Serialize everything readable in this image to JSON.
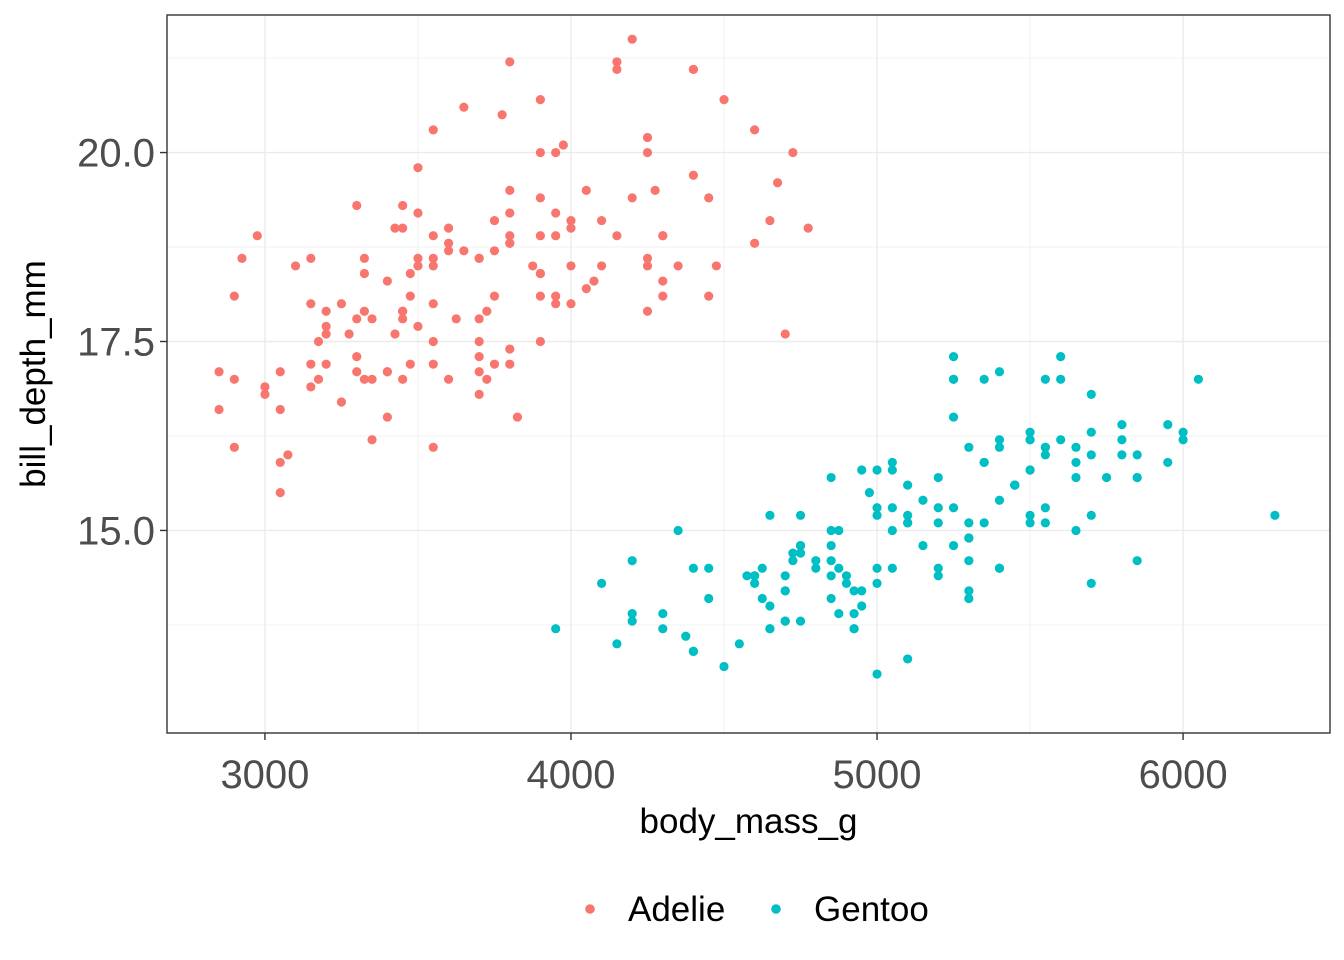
{
  "chart_data": {
    "type": "scatter",
    "xlabel": "body_mass_g",
    "ylabel": "bill_depth_mm",
    "xlim": [
      2680,
      6480
    ],
    "ylim": [
      12.32,
      21.82
    ],
    "x_ticks": [
      3000,
      4000,
      5000,
      6000
    ],
    "y_ticks": [
      15.0,
      17.5,
      20.0
    ],
    "x_tick_labels": [
      "3000",
      "4000",
      "5000",
      "6000"
    ],
    "y_tick_labels": [
      "15.0",
      "17.5",
      "20.0"
    ],
    "grid": true,
    "legend_position": "bottom",
    "series": [
      {
        "name": "Adelie",
        "color": "#F8766D",
        "points": [
          [
            3750,
            18.7
          ],
          [
            3800,
            17.4
          ],
          [
            3250,
            18.0
          ],
          [
            3450,
            19.3
          ],
          [
            3650,
            20.6
          ],
          [
            3625,
            17.8
          ],
          [
            4675,
            19.6
          ],
          [
            3475,
            18.1
          ],
          [
            4250,
            20.2
          ],
          [
            3300,
            17.1
          ],
          [
            3700,
            17.3
          ],
          [
            3200,
            17.6
          ],
          [
            3800,
            21.2
          ],
          [
            4400,
            21.1
          ],
          [
            3700,
            17.8
          ],
          [
            3450,
            19.0
          ],
          [
            4500,
            20.7
          ],
          [
            3325,
            18.4
          ],
          [
            4200,
            21.5
          ],
          [
            3400,
            18.3
          ],
          [
            3600,
            18.7
          ],
          [
            3800,
            19.2
          ],
          [
            3950,
            18.1
          ],
          [
            3800,
            17.2
          ],
          [
            3800,
            18.9
          ],
          [
            3550,
            18.6
          ],
          [
            3200,
            17.9
          ],
          [
            3150,
            18.6
          ],
          [
            3950,
            18.9
          ],
          [
            3250,
            16.7
          ],
          [
            3900,
            18.1
          ],
          [
            3300,
            17.8
          ],
          [
            3900,
            18.9
          ],
          [
            3325,
            17.0
          ],
          [
            4150,
            21.1
          ],
          [
            3950,
            20.0
          ],
          [
            3550,
            18.5
          ],
          [
            3300,
            19.3
          ],
          [
            4650,
            19.1
          ],
          [
            3150,
            18.0
          ],
          [
            3900,
            18.4
          ],
          [
            3100,
            18.5
          ],
          [
            4400,
            19.7
          ],
          [
            3000,
            16.9
          ],
          [
            4600,
            18.8
          ],
          [
            3425,
            19.0
          ],
          [
            2975,
            18.9
          ],
          [
            3450,
            17.9
          ],
          [
            4150,
            21.2
          ],
          [
            3500,
            17.7
          ],
          [
            4300,
            18.9
          ],
          [
            3450,
            17.9
          ],
          [
            4050,
            19.5
          ],
          [
            2900,
            18.1
          ],
          [
            3700,
            18.6
          ],
          [
            3550,
            17.5
          ],
          [
            3800,
            18.8
          ],
          [
            2850,
            16.6
          ],
          [
            3750,
            19.1
          ],
          [
            3150,
            16.9
          ],
          [
            4400,
            21.1
          ],
          [
            3600,
            17.0
          ],
          [
            4050,
            18.2
          ],
          [
            2850,
            17.1
          ],
          [
            3950,
            18.0
          ],
          [
            3350,
            16.2
          ],
          [
            4100,
            19.1
          ],
          [
            3050,
            16.6
          ],
          [
            4450,
            19.4
          ],
          [
            3600,
            19.0
          ],
          [
            3900,
            18.4
          ],
          [
            3550,
            17.2
          ],
          [
            4150,
            18.9
          ],
          [
            3700,
            17.5
          ],
          [
            4250,
            18.5
          ],
          [
            3700,
            16.8
          ],
          [
            3900,
            19.4
          ],
          [
            3550,
            16.1
          ],
          [
            4000,
            19.1
          ],
          [
            3200,
            17.2
          ],
          [
            4700,
            17.6
          ],
          [
            3800,
            18.8
          ],
          [
            4200,
            19.4
          ],
          [
            3350,
            17.8
          ],
          [
            3550,
            20.3
          ],
          [
            3800,
            19.5
          ],
          [
            3500,
            18.6
          ],
          [
            3950,
            19.2
          ],
          [
            3600,
            18.8
          ],
          [
            3550,
            18.0
          ],
          [
            4300,
            18.1
          ],
          [
            3400,
            17.1
          ],
          [
            4450,
            18.1
          ],
          [
            3300,
            17.3
          ],
          [
            4300,
            18.9
          ],
          [
            3700,
            18.6
          ],
          [
            4350,
            18.5
          ],
          [
            2900,
            16.1
          ],
          [
            4100,
            18.5
          ],
          [
            3725,
            17.9
          ],
          [
            4725,
            20.0
          ],
          [
            3075,
            16.0
          ],
          [
            4250,
            20.0
          ],
          [
            2925,
            18.6
          ],
          [
            3550,
            18.9
          ],
          [
            3750,
            17.2
          ],
          [
            3900,
            20.0
          ],
          [
            3175,
            17.0
          ],
          [
            4775,
            19.0
          ],
          [
            3825,
            16.5
          ],
          [
            4600,
            20.3
          ],
          [
            3200,
            17.7
          ],
          [
            4275,
            19.5
          ],
          [
            3900,
            20.7
          ],
          [
            4075,
            18.3
          ],
          [
            2900,
            17.0
          ],
          [
            3775,
            20.5
          ],
          [
            3350,
            17.0
          ],
          [
            3325,
            18.6
          ],
          [
            3150,
            17.2
          ],
          [
            3500,
            19.8
          ],
          [
            3450,
            17.0
          ],
          [
            3875,
            18.5
          ],
          [
            3050,
            15.9
          ],
          [
            4000,
            19.0
          ],
          [
            3275,
            17.6
          ],
          [
            4300,
            18.3
          ],
          [
            3050,
            17.1
          ],
          [
            4000,
            18.0
          ],
          [
            3325,
            17.9
          ],
          [
            3500,
            19.2
          ],
          [
            3500,
            18.5
          ],
          [
            4475,
            18.5
          ],
          [
            3425,
            17.6
          ],
          [
            3900,
            17.5
          ],
          [
            3175,
            17.5
          ],
          [
            3975,
            20.1
          ],
          [
            3400,
            16.5
          ],
          [
            4250,
            17.9
          ],
          [
            3400,
            17.1
          ],
          [
            3475,
            17.2
          ],
          [
            3050,
            15.5
          ],
          [
            3725,
            17.0
          ],
          [
            3000,
            16.8
          ],
          [
            3650,
            18.7
          ],
          [
            4250,
            18.6
          ],
          [
            3475,
            18.4
          ],
          [
            3450,
            17.8
          ],
          [
            3750,
            18.1
          ],
          [
            3700,
            17.1
          ],
          [
            4000,
            18.5
          ]
        ]
      },
      {
        "name": "Gentoo",
        "color": "#00BFC4",
        "points": [
          [
            4500,
            13.2
          ],
          [
            5700,
            16.3
          ],
          [
            4450,
            14.1
          ],
          [
            5700,
            15.2
          ],
          [
            5400,
            14.5
          ],
          [
            4550,
            13.5
          ],
          [
            4800,
            14.6
          ],
          [
            5200,
            15.3
          ],
          [
            4400,
            13.4
          ],
          [
            5150,
            15.4
          ],
          [
            4650,
            13.7
          ],
          [
            5550,
            16.1
          ],
          [
            4650,
            13.7
          ],
          [
            5850,
            14.6
          ],
          [
            4200,
            14.6
          ],
          [
            5850,
            15.7
          ],
          [
            4150,
            13.5
          ],
          [
            6300,
            15.2
          ],
          [
            4800,
            14.5
          ],
          [
            5350,
            15.1
          ],
          [
            5700,
            14.3
          ],
          [
            5000,
            14.5
          ],
          [
            4400,
            14.5
          ],
          [
            5050,
            15.8
          ],
          [
            5000,
            13.1
          ],
          [
            5100,
            15.1
          ],
          [
            4100,
            14.3
          ],
          [
            5650,
            15.0
          ],
          [
            4600,
            14.3
          ],
          [
            5550,
            15.3
          ],
          [
            5250,
            15.3
          ],
          [
            4700,
            14.2
          ],
          [
            5050,
            14.5
          ],
          [
            6050,
            17.0
          ],
          [
            5150,
            14.8
          ],
          [
            5400,
            16.1
          ],
          [
            4950,
            14.2
          ],
          [
            5250,
            17.0
          ],
          [
            4350,
            15.0
          ],
          [
            5350,
            17.0
          ],
          [
            3950,
            13.7
          ],
          [
            5700,
            16.8
          ],
          [
            4300,
            13.9
          ],
          [
            4750,
            13.8
          ],
          [
            5550,
            16.0
          ],
          [
            4900,
            14.4
          ],
          [
            4200,
            13.9
          ],
          [
            5400,
            17.1
          ],
          [
            5100,
            13.3
          ],
          [
            5300,
            16.1
          ],
          [
            4850,
            15.7
          ],
          [
            5300,
            15.1
          ],
          [
            4400,
            13.4
          ],
          [
            5000,
            15.3
          ],
          [
            4900,
            14.3
          ],
          [
            5050,
            15.9
          ],
          [
            4300,
            13.7
          ],
          [
            5000,
            15.8
          ],
          [
            4450,
            14.5
          ],
          [
            5550,
            16.1
          ],
          [
            4200,
            13.8
          ],
          [
            5300,
            14.6
          ],
          [
            4400,
            13.4
          ],
          [
            5650,
            15.9
          ],
          [
            4700,
            13.8
          ],
          [
            5700,
            16.0
          ],
          [
            4650,
            15.2
          ],
          [
            5800,
            16.2
          ],
          [
            4700,
            13.8
          ],
          [
            5550,
            17.0
          ],
          [
            4750,
            15.2
          ],
          [
            5000,
            14.3
          ],
          [
            5100,
            15.6
          ],
          [
            5200,
            15.1
          ],
          [
            4700,
            14.4
          ],
          [
            5800,
            16.0
          ],
          [
            4600,
            14.4
          ],
          [
            6000,
            16.2
          ],
          [
            4750,
            14.7
          ],
          [
            5950,
            15.9
          ],
          [
            4625,
            14.5
          ],
          [
            5450,
            15.6
          ],
          [
            4725,
            14.7
          ],
          [
            5350,
            15.9
          ],
          [
            4750,
            14.8
          ],
          [
            5600,
            17.3
          ],
          [
            4600,
            14.4
          ],
          [
            5300,
            14.2
          ],
          [
            4875,
            14.5
          ],
          [
            5550,
            15.1
          ],
          [
            4950,
            15.8
          ],
          [
            5400,
            16.2
          ],
          [
            4750,
            14.8
          ],
          [
            5650,
            16.1
          ],
          [
            4850,
            14.4
          ],
          [
            5200,
            14.4
          ],
          [
            4925,
            13.7
          ],
          [
            4875,
            15.0
          ],
          [
            4625,
            14.1
          ],
          [
            5250,
            17.3
          ],
          [
            4850,
            15.0
          ],
          [
            5600,
            17.0
          ],
          [
            4975,
            15.5
          ],
          [
            5500,
            15.8
          ],
          [
            4725,
            14.6
          ],
          [
            5500,
            15.8
          ],
          [
            4700,
            14.2
          ],
          [
            5500,
            15.1
          ],
          [
            4575,
            14.4
          ],
          [
            5500,
            16.2
          ],
          [
            5000,
            15.2
          ],
          [
            5950,
            16.4
          ],
          [
            4650,
            14.0
          ],
          [
            5500,
            16.2
          ],
          [
            4375,
            13.6
          ],
          [
            5850,
            15.7
          ],
          [
            4875,
            13.9
          ],
          [
            6000,
            16.3
          ],
          [
            4925,
            14.2
          ],
          [
            4850,
            14.8
          ],
          [
            5750,
            15.7
          ],
          [
            5200,
            14.5
          ],
          [
            5400,
            14.5
          ],
          [
            5300,
            14.1
          ],
          [
            5250,
            14.8
          ],
          [
            5500,
            15.2
          ],
          [
            5650,
            15.7
          ],
          [
            5600,
            16.2
          ],
          [
            5250,
            17.0
          ],
          [
            5450,
            15.6
          ],
          [
            5350,
            15.9
          ],
          [
            5050,
            15.0
          ],
          [
            5800,
            16.4
          ],
          [
            5300,
            14.9
          ],
          [
            4850,
            14.1
          ],
          [
            5200,
            15.7
          ],
          [
            4925,
            13.7
          ],
          [
            5100,
            15.1
          ],
          [
            5400,
            15.4
          ],
          [
            5250,
            16.5
          ],
          [
            5500,
            16.3
          ],
          [
            4950,
            14.0
          ],
          [
            5100,
            15.2
          ],
          [
            4850,
            14.6
          ],
          [
            4925,
            13.9
          ],
          [
            5300,
            14.9
          ],
          [
            5450,
            15.6
          ],
          [
            5850,
            16.0
          ],
          [
            5050,
            15.3
          ]
        ]
      }
    ]
  }
}
